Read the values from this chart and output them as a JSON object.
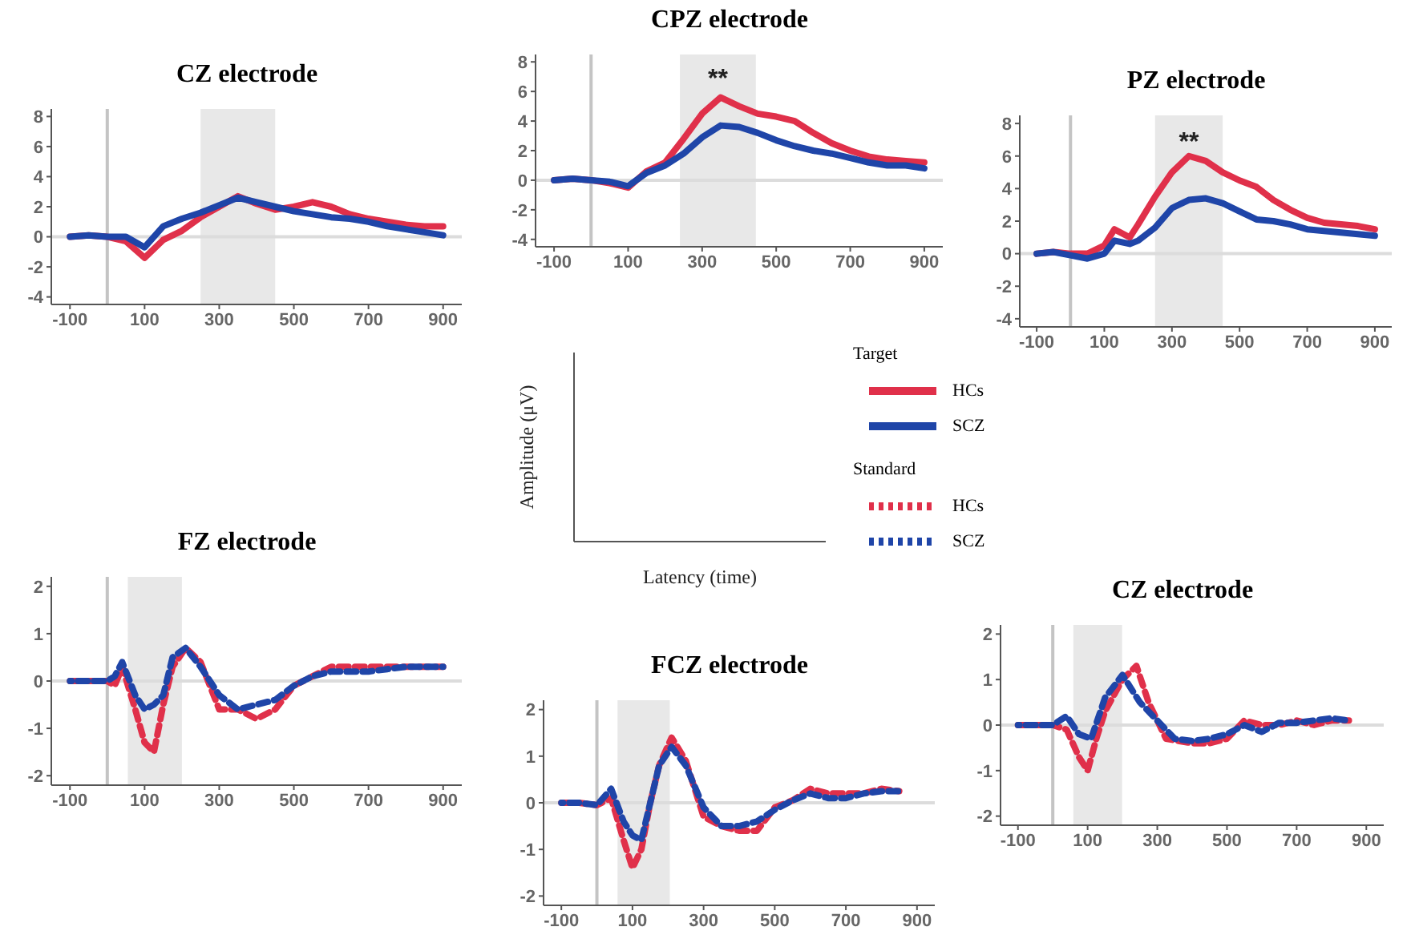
{
  "chart_data": [
    {
      "type": "line",
      "title": "CZ electrode",
      "xlim": [
        -150,
        950
      ],
      "ylim": [
        -4.5,
        8.5
      ],
      "xticks": [
        -100,
        100,
        300,
        500,
        700,
        900
      ],
      "yticks": [
        -4,
        -2,
        0,
        2,
        4,
        6,
        8
      ],
      "grid": false,
      "marker": "none",
      "ref_lines": [
        {
          "axis": "x",
          "value": 0,
          "color": "#c4c4c4"
        },
        {
          "axis": "y",
          "value": 0,
          "color": "#dcdcdc"
        }
      ],
      "bands": [
        {
          "axis": "x",
          "from": 250,
          "to": 450,
          "color": "#e8e8e8"
        }
      ],
      "series": [
        {
          "color": "#e0304a",
          "x": [
            -100,
            -50,
            0,
            50,
            100,
            150,
            200,
            250,
            300,
            350,
            400,
            450,
            500,
            550,
            600,
            650,
            700,
            750,
            800,
            850,
            900
          ],
          "values": [
            0,
            0.1,
            0,
            -0.3,
            -1.4,
            -0.2,
            0.4,
            1.3,
            2.0,
            2.7,
            2.2,
            1.8,
            2.0,
            2.3,
            2.0,
            1.5,
            1.2,
            1.0,
            0.8,
            0.7,
            0.7
          ]
        },
        {
          "color": "#1f45a8",
          "x": [
            -100,
            -50,
            0,
            50,
            100,
            150,
            200,
            250,
            300,
            350,
            400,
            450,
            500,
            550,
            600,
            650,
            700,
            750,
            800,
            850,
            900
          ],
          "values": [
            0,
            0.1,
            0,
            0,
            -0.7,
            0.7,
            1.2,
            1.6,
            2.1,
            2.6,
            2.3,
            2.0,
            1.7,
            1.5,
            1.3,
            1.2,
            1.0,
            0.7,
            0.5,
            0.3,
            0.1
          ]
        }
      ]
    },
    {
      "type": "line",
      "title": "CPZ electrode",
      "xlim": [
        -150,
        950
      ],
      "ylim": [
        -4.5,
        8.5
      ],
      "xticks": [
        -100,
        100,
        300,
        500,
        700,
        900
      ],
      "yticks": [
        -4,
        -2,
        0,
        2,
        4,
        6,
        8
      ],
      "grid": false,
      "marker": "none",
      "ref_lines": [
        {
          "axis": "x",
          "value": 0,
          "color": "#c4c4c4"
        },
        {
          "axis": "y",
          "value": 0,
          "color": "#dcdcdc"
        }
      ],
      "bands": [
        {
          "axis": "x",
          "from": 240,
          "to": 445,
          "color": "#e8e8e8"
        }
      ],
      "annotations": [
        "**"
      ],
      "legend": "bottom",
      "legend_title": "Target",
      "series": [
        {
          "name": "HCs",
          "color": "#e0304a",
          "x": [
            -100,
            -50,
            0,
            50,
            100,
            150,
            200,
            250,
            300,
            350,
            400,
            450,
            500,
            550,
            600,
            650,
            700,
            750,
            800,
            850,
            900
          ],
          "values": [
            0,
            0.1,
            0,
            -0.2,
            -0.5,
            0.6,
            1.2,
            2.8,
            4.5,
            5.6,
            5.0,
            4.5,
            4.3,
            4.0,
            3.2,
            2.5,
            2.0,
            1.6,
            1.4,
            1.3,
            1.2
          ]
        },
        {
          "name": "SCZ",
          "color": "#1f45a8",
          "x": [
            -100,
            -50,
            0,
            50,
            100,
            150,
            200,
            250,
            300,
            350,
            400,
            450,
            500,
            550,
            600,
            650,
            700,
            750,
            800,
            850,
            900
          ],
          "values": [
            0,
            0.1,
            0,
            -0.1,
            -0.4,
            0.5,
            1.0,
            1.8,
            2.9,
            3.7,
            3.6,
            3.2,
            2.7,
            2.3,
            2.0,
            1.8,
            1.5,
            1.2,
            1.0,
            1.0,
            0.8
          ]
        }
      ]
    },
    {
      "type": "line",
      "title": "PZ electrode",
      "xlim": [
        -150,
        950
      ],
      "ylim": [
        -4.5,
        8.5
      ],
      "xticks": [
        -100,
        100,
        300,
        500,
        700,
        900
      ],
      "yticks": [
        -4,
        -2,
        0,
        2,
        4,
        6,
        8
      ],
      "grid": false,
      "marker": "none",
      "ref_lines": [
        {
          "axis": "x",
          "value": 0,
          "color": "#c4c4c4"
        },
        {
          "axis": "y",
          "value": 0,
          "color": "#dcdcdc"
        }
      ],
      "bands": [
        {
          "axis": "x",
          "from": 250,
          "to": 450,
          "color": "#e8e8e8"
        }
      ],
      "annotations": [
        "**"
      ],
      "series": [
        {
          "color": "#e0304a",
          "x": [
            -100,
            -50,
            0,
            50,
            100,
            130,
            175,
            200,
            250,
            300,
            350,
            400,
            450,
            500,
            550,
            600,
            650,
            700,
            750,
            800,
            850,
            900
          ],
          "values": [
            0,
            0.1,
            0,
            0,
            0.5,
            1.5,
            1.0,
            1.8,
            3.5,
            5.0,
            6.0,
            5.7,
            5.0,
            4.5,
            4.1,
            3.3,
            2.7,
            2.2,
            1.9,
            1.8,
            1.7,
            1.5
          ]
        },
        {
          "color": "#1f45a8",
          "x": [
            -100,
            -50,
            0,
            50,
            100,
            130,
            175,
            200,
            250,
            300,
            350,
            400,
            450,
            500,
            550,
            600,
            650,
            700,
            750,
            800,
            850,
            900
          ],
          "values": [
            0,
            0.1,
            -0.1,
            -0.3,
            0,
            0.8,
            0.6,
            0.8,
            1.6,
            2.8,
            3.3,
            3.4,
            3.1,
            2.6,
            2.1,
            2.0,
            1.8,
            1.5,
            1.4,
            1.3,
            1.2,
            1.1
          ]
        }
      ]
    },
    {
      "type": "other",
      "xlabel": "Latency (time)",
      "ylabel": "Amplitude (μV)"
    },
    {
      "type": "line",
      "title": "FZ electrode",
      "xlim": [
        -150,
        950
      ],
      "ylim": [
        -2.2,
        2.2
      ],
      "xticks": [
        -100,
        100,
        300,
        500,
        700,
        900
      ],
      "yticks": [
        -2,
        -1,
        0,
        1,
        2
      ],
      "grid": false,
      "marker": "none",
      "line_style": "dashed",
      "ref_lines": [
        {
          "axis": "x",
          "value": 0,
          "color": "#c4c4c4"
        },
        {
          "axis": "y",
          "value": 0,
          "color": "#dcdcdc"
        }
      ],
      "bands": [
        {
          "axis": "x",
          "from": 55,
          "to": 200,
          "color": "#e8e8e8"
        }
      ],
      "series": [
        {
          "color": "#e0304a",
          "x": [
            -100,
            -50,
            0,
            20,
            40,
            75,
            100,
            125,
            150,
            175,
            210,
            250,
            300,
            350,
            400,
            450,
            500,
            550,
            600,
            650,
            700,
            750,
            800,
            850,
            900
          ],
          "values": [
            0,
            0,
            0,
            -0.1,
            0.3,
            -0.6,
            -1.3,
            -1.5,
            -0.5,
            0.3,
            0.7,
            0.4,
            -0.6,
            -0.6,
            -0.8,
            -0.6,
            -0.1,
            0.1,
            0.3,
            0.3,
            0.3,
            0.3,
            0.3,
            0.3,
            0.3
          ]
        },
        {
          "color": "#1f45a8",
          "x": [
            -100,
            -50,
            0,
            20,
            40,
            75,
            100,
            125,
            150,
            175,
            210,
            250,
            300,
            350,
            400,
            450,
            500,
            550,
            600,
            650,
            700,
            750,
            800,
            850,
            900
          ],
          "values": [
            0,
            0,
            0,
            0.1,
            0.4,
            -0.3,
            -0.6,
            -0.5,
            -0.3,
            0.5,
            0.7,
            0.3,
            -0.3,
            -0.6,
            -0.5,
            -0.4,
            -0.1,
            0.1,
            0.2,
            0.2,
            0.2,
            0.25,
            0.3,
            0.3,
            0.3
          ]
        }
      ]
    },
    {
      "type": "line",
      "title": "FCZ electrode",
      "xlim": [
        -150,
        950
      ],
      "ylim": [
        -2.2,
        2.2
      ],
      "xticks": [
        -100,
        100,
        300,
        500,
        700,
        900
      ],
      "yticks": [
        -2,
        -1,
        0,
        1,
        2
      ],
      "grid": false,
      "marker": "none",
      "line_style": "dashed",
      "ref_lines": [
        {
          "axis": "x",
          "value": 0,
          "color": "#c4c4c4"
        },
        {
          "axis": "y",
          "value": 0,
          "color": "#dcdcdc"
        }
      ],
      "bands": [
        {
          "axis": "x",
          "from": 58,
          "to": 205,
          "color": "#e8e8e8"
        }
      ],
      "legend": "top",
      "legend_title": "Standard",
      "series": [
        {
          "name": "HCs",
          "color": "#e0304a",
          "x": [
            -100,
            -50,
            0,
            40,
            75,
            100,
            125,
            150,
            175,
            210,
            250,
            300,
            350,
            400,
            450,
            500,
            550,
            600,
            650,
            700,
            750,
            800,
            850
          ],
          "values": [
            0,
            0,
            -0.05,
            0.1,
            -0.8,
            -1.4,
            -1.0,
            0,
            0.8,
            1.4,
            0.9,
            -0.3,
            -0.5,
            -0.6,
            -0.6,
            -0.1,
            0.05,
            0.3,
            0.2,
            0.2,
            0.2,
            0.3,
            0.25
          ]
        },
        {
          "name": "SCZ",
          "color": "#1f45a8",
          "x": [
            -100,
            -50,
            0,
            40,
            75,
            100,
            125,
            150,
            175,
            210,
            250,
            300,
            350,
            400,
            450,
            500,
            550,
            600,
            650,
            700,
            750,
            800,
            850
          ],
          "values": [
            0,
            0,
            -0.05,
            0.3,
            -0.4,
            -0.7,
            -0.8,
            0,
            0.8,
            1.2,
            0.8,
            -0.1,
            -0.5,
            -0.5,
            -0.4,
            -0.15,
            0.05,
            0.2,
            0.1,
            0.1,
            0.2,
            0.25,
            0.25
          ]
        }
      ]
    },
    {
      "type": "line",
      "title": "CZ electrode",
      "xlim": [
        -150,
        950
      ],
      "ylim": [
        -2.2,
        2.2
      ],
      "xticks": [
        -100,
        100,
        300,
        500,
        700,
        900
      ],
      "yticks": [
        -2,
        -1,
        0,
        1,
        2
      ],
      "grid": false,
      "marker": "none",
      "line_style": "dashed",
      "ref_lines": [
        {
          "axis": "x",
          "value": 0,
          "color": "#c4c4c4"
        },
        {
          "axis": "y",
          "value": 0,
          "color": "#dcdcdc"
        }
      ],
      "bands": [
        {
          "axis": "x",
          "from": 59,
          "to": 199,
          "color": "#e8e8e8"
        }
      ],
      "series": [
        {
          "color": "#e0304a",
          "x": [
            -100,
            -50,
            0,
            40,
            75,
            100,
            125,
            150,
            200,
            240,
            275,
            325,
            400,
            450,
            500,
            550,
            600,
            650,
            700,
            750,
            800,
            850
          ],
          "values": [
            0,
            0,
            0,
            -0.1,
            -0.7,
            -1.0,
            -0.3,
            0.3,
            1.0,
            1.3,
            0.5,
            -0.3,
            -0.4,
            -0.4,
            -0.3,
            0.1,
            0,
            0,
            0.1,
            0,
            0.1,
            0.1
          ]
        },
        {
          "color": "#1f45a8",
          "x": [
            -100,
            -50,
            0,
            40,
            75,
            110,
            150,
            200,
            250,
            300,
            350,
            400,
            450,
            500,
            550,
            600,
            650,
            700,
            750,
            800,
            850
          ],
          "values": [
            0,
            0,
            0,
            0.2,
            -0.2,
            -0.3,
            0.6,
            1.1,
            0.5,
            0.1,
            -0.3,
            -0.35,
            -0.3,
            -0.2,
            0,
            -0.15,
            0.05,
            0.05,
            0.1,
            0.15,
            0.1
          ]
        }
      ]
    }
  ]
}
